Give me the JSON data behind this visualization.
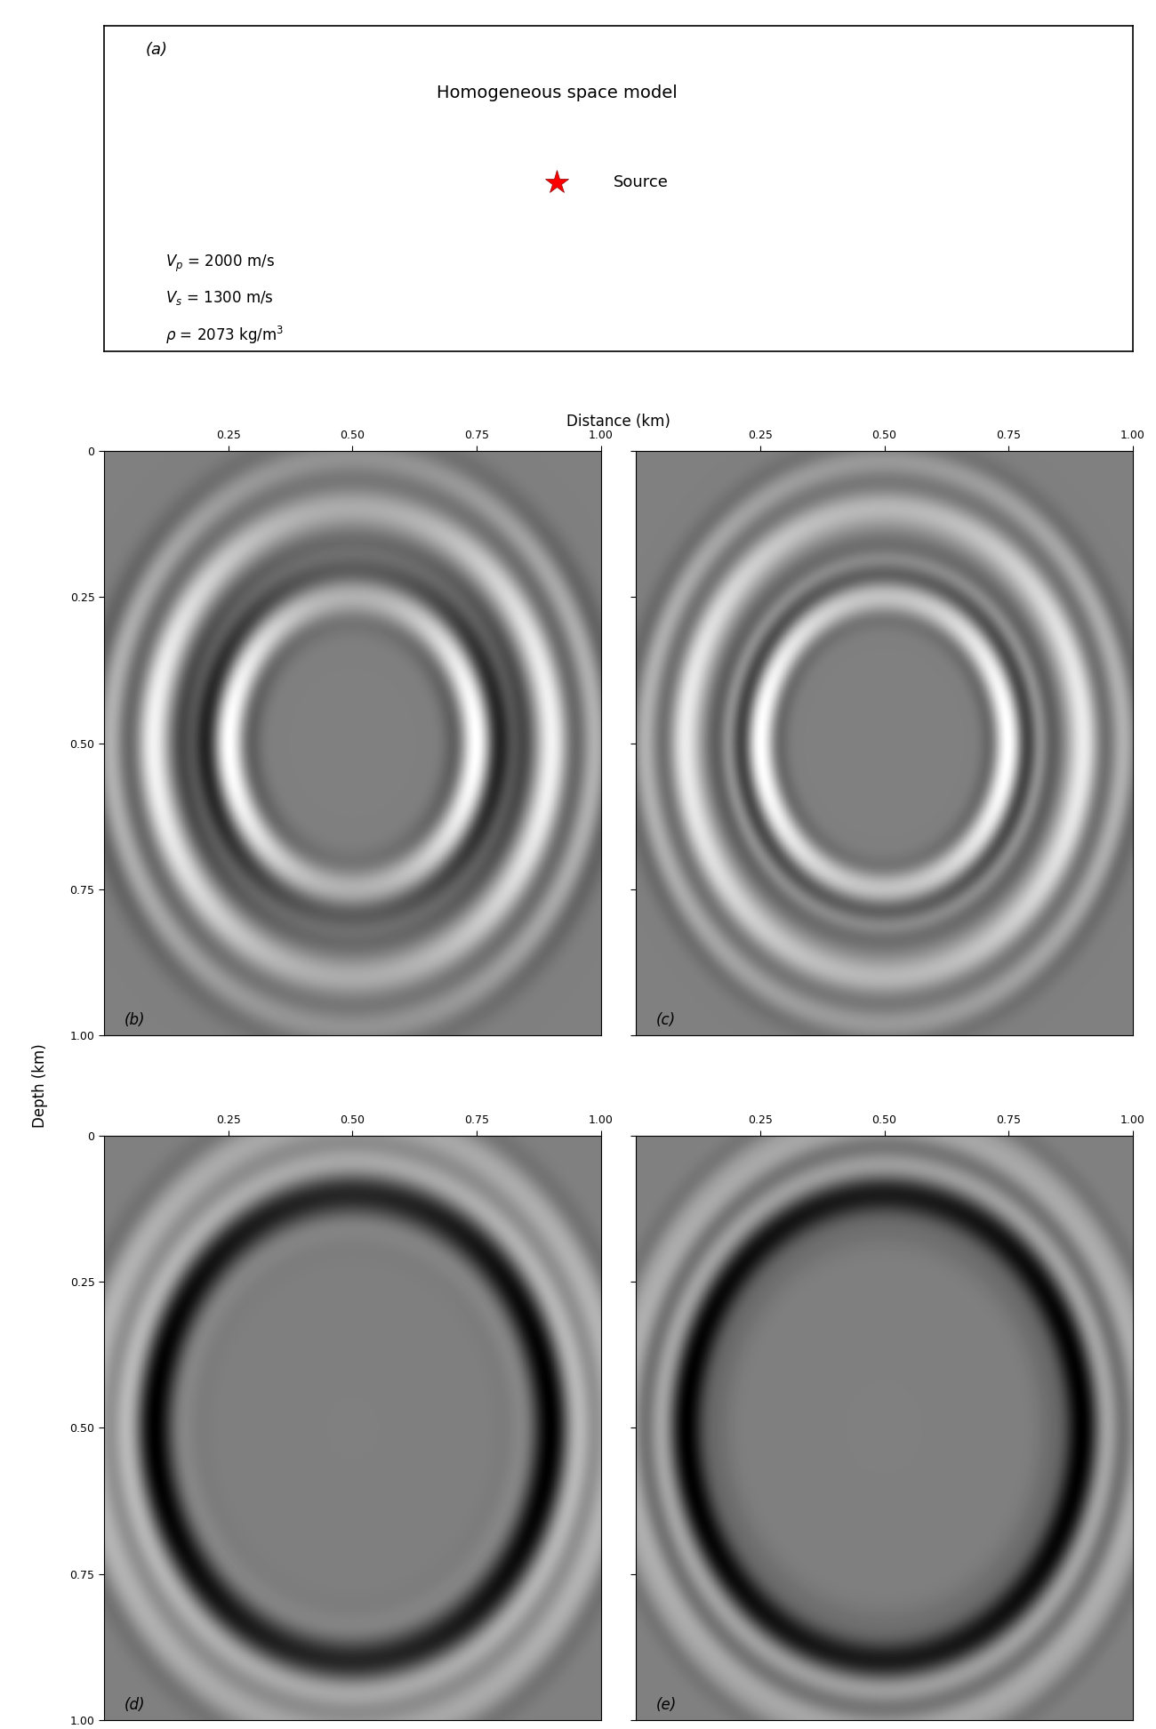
{
  "title_panel": "Homogeneous space model",
  "label_a": "(a)",
  "label_b": "(b)",
  "label_c": "(c)",
  "label_d": "(d)",
  "label_e": "(e)",
  "source_label": "Source",
  "vp_text": "$V_p$ = 2000 m/s",
  "vs_text": "$V_s$ = 1300 m/s",
  "rho_text": "$\\rho$ = 2073 kg/m$^3$",
  "distance_label": "Distance (km)",
  "depth_label": "Depth (km)",
  "x_ticks": [
    0.25,
    0.5,
    0.75,
    1.0
  ],
  "y_ticks": [
    0,
    0.25,
    0.5,
    0.75,
    1.0
  ],
  "bg_color_seismic": "#8a9aaa",
  "fig_bg": "#ffffff"
}
